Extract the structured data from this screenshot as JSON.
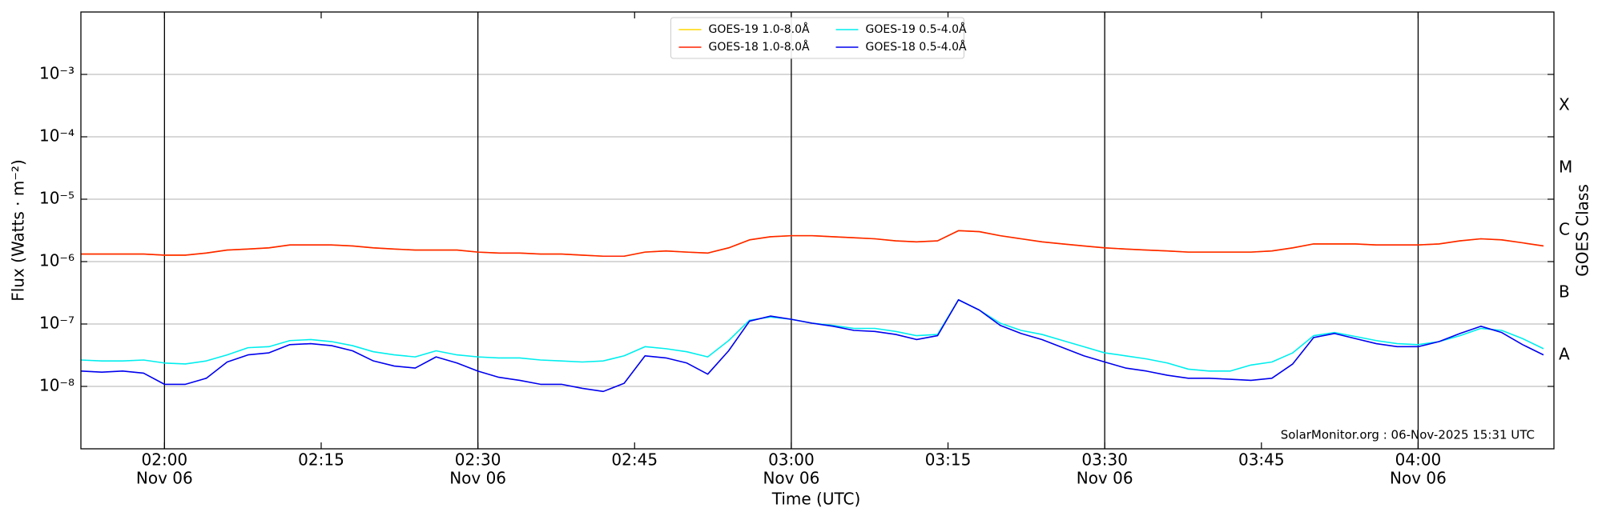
{
  "chart_data": {
    "type": "line",
    "ylabel": "Flux (Watts · m⁻²)",
    "xlabel": "Time (UTC)",
    "y2label": "GOES Class",
    "annotation": "SolarMonitor.org : 06-Nov-2025 15:31 UTC",
    "log_y": true,
    "grid": true,
    "legend": "top-center",
    "xlim": [
      "01:52",
      "04:13"
    ],
    "xticks": [
      "02:00",
      "02:15",
      "02:30",
      "02:45",
      "03:00",
      "03:15",
      "03:30",
      "03:45",
      "04:00"
    ],
    "xtick_sublabels": [
      "Nov 06",
      null,
      "Nov 06",
      null,
      "Nov 06",
      null,
      "Nov 06",
      null,
      "Nov 06"
    ],
    "ylim": [
      1e-09,
      0.01
    ],
    "yticks": [
      {
        "value": 1e-08,
        "label": "10⁻⁸"
      },
      {
        "value": 1e-07,
        "label": "10⁻⁷"
      },
      {
        "value": 1e-06,
        "label": "10⁻⁶"
      },
      {
        "value": 1e-05,
        "label": "10⁻⁵"
      },
      {
        "value": 0.0001,
        "label": "10⁻⁴"
      },
      {
        "value": 0.001,
        "label": "10⁻³"
      }
    ],
    "y2lim": [
      1e-09,
      0.01
    ],
    "y2ticks": [
      {
        "value": 3.16e-08,
        "label": "A"
      },
      {
        "value": 3.16e-07,
        "label": "B"
      },
      {
        "value": 3.16e-06,
        "label": "C"
      },
      {
        "value": 3.16e-05,
        "label": "M"
      },
      {
        "value": 0.000316,
        "label": "X"
      }
    ],
    "x": [
      "01:52",
      "01:54",
      "01:56",
      "01:58",
      "02:00",
      "02:02",
      "02:04",
      "02:06",
      "02:08",
      "02:10",
      "02:12",
      "02:14",
      "02:16",
      "02:18",
      "02:20",
      "02:22",
      "02:24",
      "02:26",
      "02:28",
      "02:30",
      "02:32",
      "02:34",
      "02:36",
      "02:38",
      "02:40",
      "02:42",
      "02:44",
      "02:46",
      "02:48",
      "02:50",
      "02:52",
      "02:54",
      "02:56",
      "02:58",
      "03:00",
      "03:02",
      "03:04",
      "03:06",
      "03:08",
      "03:10",
      "03:12",
      "03:14",
      "03:16",
      "03:18",
      "03:20",
      "03:22",
      "03:24",
      "03:26",
      "03:28",
      "03:30",
      "03:32",
      "03:34",
      "03:36",
      "03:38",
      "03:40",
      "03:42",
      "03:44",
      "03:46",
      "03:48",
      "03:50",
      "03:52",
      "03:54",
      "03:56",
      "03:58",
      "04:00",
      "04:02",
      "04:04",
      "04:06",
      "04:08",
      "04:10",
      "04:12"
    ],
    "series": [
      {
        "name": "GOES-19 1.0-8.0Å",
        "color": "#ffd700",
        "values": [
          1.32e-06,
          1.32e-06,
          1.32e-06,
          1.32e-06,
          1.27e-06,
          1.27e-06,
          1.37e-06,
          1.53e-06,
          1.59e-06,
          1.66e-06,
          1.85e-06,
          1.85e-06,
          1.85e-06,
          1.78e-06,
          1.66e-06,
          1.59e-06,
          1.53e-06,
          1.53e-06,
          1.53e-06,
          1.42e-06,
          1.37e-06,
          1.37e-06,
          1.32e-06,
          1.32e-06,
          1.27e-06,
          1.22e-06,
          1.22e-06,
          1.42e-06,
          1.48e-06,
          1.42e-06,
          1.37e-06,
          1.66e-06,
          2.23e-06,
          2.5e-06,
          2.6e-06,
          2.6e-06,
          2.5e-06,
          2.41e-06,
          2.32e-06,
          2.15e-06,
          2.07e-06,
          2.15e-06,
          3.13e-06,
          3.02e-06,
          2.6e-06,
          2.32e-06,
          2.07e-06,
          1.92e-06,
          1.78e-06,
          1.66e-06,
          1.59e-06,
          1.53e-06,
          1.48e-06,
          1.42e-06,
          1.42e-06,
          1.42e-06,
          1.42e-06,
          1.48e-06,
          1.66e-06,
          1.92e-06,
          1.92e-06,
          1.92e-06,
          1.85e-06,
          1.85e-06,
          1.85e-06,
          1.92e-06,
          2.15e-06,
          2.32e-06,
          2.23e-06,
          2e-06,
          1.78e-06
        ]
      },
      {
        "name": "GOES-18 1.0-8.0Å",
        "color": "#ff2200",
        "values": [
          1.32e-06,
          1.32e-06,
          1.32e-06,
          1.32e-06,
          1.27e-06,
          1.27e-06,
          1.37e-06,
          1.53e-06,
          1.59e-06,
          1.66e-06,
          1.85e-06,
          1.85e-06,
          1.85e-06,
          1.78e-06,
          1.66e-06,
          1.59e-06,
          1.53e-06,
          1.53e-06,
          1.53e-06,
          1.42e-06,
          1.37e-06,
          1.37e-06,
          1.32e-06,
          1.32e-06,
          1.27e-06,
          1.22e-06,
          1.22e-06,
          1.42e-06,
          1.48e-06,
          1.42e-06,
          1.37e-06,
          1.66e-06,
          2.23e-06,
          2.5e-06,
          2.6e-06,
          2.6e-06,
          2.5e-06,
          2.41e-06,
          2.32e-06,
          2.15e-06,
          2.07e-06,
          2.15e-06,
          3.13e-06,
          3.02e-06,
          2.6e-06,
          2.32e-06,
          2.07e-06,
          1.92e-06,
          1.78e-06,
          1.66e-06,
          1.59e-06,
          1.53e-06,
          1.48e-06,
          1.42e-06,
          1.42e-06,
          1.42e-06,
          1.42e-06,
          1.48e-06,
          1.66e-06,
          1.92e-06,
          1.92e-06,
          1.92e-06,
          1.85e-06,
          1.85e-06,
          1.85e-06,
          1.92e-06,
          2.15e-06,
          2.32e-06,
          2.23e-06,
          2e-06,
          1.78e-06
        ]
      },
      {
        "name": "GOES-19 0.5-4.0Å",
        "color": "#00eeee",
        "values": [
          2.65e-08,
          2.56e-08,
          2.56e-08,
          2.65e-08,
          2.37e-08,
          2.29e-08,
          2.56e-08,
          3.2e-08,
          4.17e-08,
          4.33e-08,
          5.42e-08,
          5.63e-08,
          5.22e-08,
          4.5e-08,
          3.59e-08,
          3.2e-08,
          2.97e-08,
          3.72e-08,
          3.2e-08,
          2.97e-08,
          2.86e-08,
          2.86e-08,
          2.65e-08,
          2.56e-08,
          2.46e-08,
          2.56e-08,
          3.09e-08,
          4.33e-08,
          4.02e-08,
          3.59e-08,
          2.97e-08,
          5.42e-08,
          1.15e-07,
          1.29e-07,
          1.19e-07,
          1.03e-07,
          9.5e-08,
          8.5e-08,
          8.5e-08,
          7.6e-08,
          6.5e-08,
          6.8e-08,
          2.44e-07,
          1.67e-07,
          1.03e-07,
          7.9e-08,
          6.8e-08,
          5.42e-08,
          4.33e-08,
          3.45e-08,
          3.09e-08,
          2.76e-08,
          2.37e-08,
          1.89e-08,
          1.76e-08,
          1.76e-08,
          2.2e-08,
          2.46e-08,
          3.45e-08,
          6.5e-08,
          7.3e-08,
          6.3e-08,
          5.42e-08,
          4.84e-08,
          4.67e-08,
          5.22e-08,
          6.5e-08,
          8.5e-08,
          7.9e-08,
          5.84e-08,
          4.02e-08
        ]
      },
      {
        "name": "GOES-18 0.5-4.0Å",
        "color": "#0000ee",
        "values": [
          1.76e-08,
          1.69e-08,
          1.76e-08,
          1.63e-08,
          1.08e-08,
          1.08e-08,
          1.35e-08,
          2.46e-08,
          3.2e-08,
          3.45e-08,
          4.67e-08,
          4.84e-08,
          4.5e-08,
          3.72e-08,
          2.56e-08,
          2.12e-08,
          1.97e-08,
          2.97e-08,
          2.37e-08,
          1.76e-08,
          1.4e-08,
          1.25e-08,
          1.08e-08,
          1.08e-08,
          9.3e-09,
          8.3e-09,
          1.12e-08,
          3.09e-08,
          2.86e-08,
          2.37e-08,
          1.57e-08,
          3.72e-08,
          1.11e-07,
          1.34e-07,
          1.19e-07,
          1.03e-07,
          9.2e-08,
          7.9e-08,
          7.6e-08,
          6.8e-08,
          5.63e-08,
          6.5e-08,
          2.44e-07,
          1.67e-07,
          9.5e-08,
          7.05e-08,
          5.63e-08,
          4.17e-08,
          3.09e-08,
          2.46e-08,
          1.97e-08,
          1.76e-08,
          1.51e-08,
          1.35e-08,
          1.35e-08,
          1.3e-08,
          1.25e-08,
          1.35e-08,
          2.29e-08,
          6.07e-08,
          7.05e-08,
          5.84e-08,
          4.84e-08,
          4.33e-08,
          4.33e-08,
          5.22e-08,
          7.05e-08,
          9.2e-08,
          7.3e-08,
          4.67e-08,
          3.2e-08
        ]
      }
    ]
  }
}
